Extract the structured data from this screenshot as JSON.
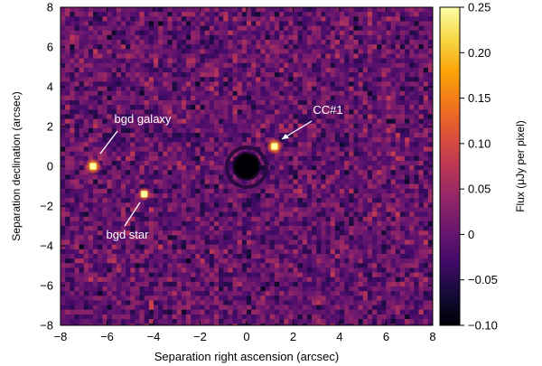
{
  "chart_data": {
    "type": "heatmap",
    "title": "",
    "xlabel": "Separation right ascension (arcsec)",
    "ylabel": "Separation declination (arcsec)",
    "xlim": [
      -8,
      8
    ],
    "ylim": [
      -8,
      8
    ],
    "x_ticks": [
      -8,
      -6,
      -4,
      -2,
      0,
      2,
      4,
      6,
      8
    ],
    "y_ticks": [
      -8,
      -6,
      -4,
      -2,
      0,
      2,
      4,
      6,
      8
    ],
    "x_tick_labels": [
      "−8",
      "−6",
      "−4",
      "−2",
      "0",
      "2",
      "4",
      "6",
      "8"
    ],
    "y_tick_labels": [
      "−8",
      "−6",
      "−4",
      "−2",
      "0",
      "2",
      "4",
      "6",
      "8"
    ],
    "colorbar": {
      "label": "Flux (μJy per pixel)",
      "range": [
        -0.1,
        0.25
      ],
      "ticks": [
        0.25,
        0.2,
        0.15,
        0.1,
        0.05,
        0,
        -0.05,
        -0.1
      ],
      "tick_labels": [
        "0.25",
        "0.20",
        "0.15",
        "0.10",
        "0.05",
        "0",
        "−0.05",
        "−0.10"
      ],
      "colormap": "inferno"
    },
    "sources": [
      {
        "label": "bgd galaxy",
        "x": -6.6,
        "y": 0.0,
        "flux": 0.25
      },
      {
        "label": "bgd star",
        "x": -4.4,
        "y": -1.4,
        "flux": 0.22
      },
      {
        "label": "CC#1",
        "x": 1.2,
        "y": 1.0,
        "flux": 0.25
      }
    ],
    "masked_center": {
      "x": 0.0,
      "y": 0.0,
      "flux": -0.1
    },
    "background_flux": 0.0
  }
}
